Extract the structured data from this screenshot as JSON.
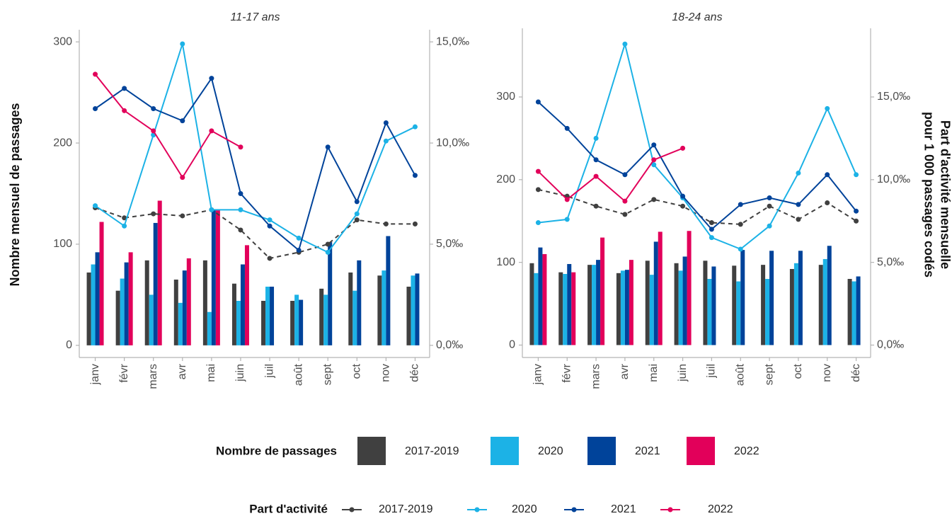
{
  "chart_data": [
    {
      "type": "combo",
      "title": "11-17 ans",
      "ylabel": "Nombre mensuel de passages",
      "categories": [
        "janv",
        "févr",
        "mars",
        "avr",
        "mai",
        "juin",
        "juil",
        "août",
        "sept",
        "oct",
        "nov",
        "déc"
      ],
      "ylim": [
        -12,
        312
      ],
      "yticks": [
        0,
        100,
        200,
        300
      ],
      "y2lim": [
        -0.6,
        15.6
      ],
      "y2ticks": [
        {
          "value": 0,
          "label": "0,0‰"
        },
        {
          "value": 5,
          "label": "5,0‰"
        },
        {
          "value": 10,
          "label": "10,0‰"
        },
        {
          "value": 15,
          "label": "15,0‰"
        }
      ],
      "series": [
        {
          "name": "2017-2019",
          "type": "bar",
          "color": "#404040",
          "values": [
            72,
            54,
            84,
            65,
            84,
            61,
            44,
            44,
            56,
            72,
            69,
            58
          ]
        },
        {
          "name": "2020",
          "type": "bar",
          "color": "#1cb2e6",
          "values": [
            80,
            66,
            50,
            42,
            33,
            44,
            58,
            50,
            50,
            54,
            74,
            69
          ]
        },
        {
          "name": "2021",
          "type": "bar",
          "color": "#00439a",
          "values": [
            92,
            82,
            121,
            74,
            134,
            80,
            58,
            45,
            102,
            84,
            108,
            71
          ]
        },
        {
          "name": "2022",
          "type": "bar",
          "color": "#e2005a",
          "values": [
            122,
            92,
            143,
            86,
            134,
            99,
            null,
            null,
            null,
            null,
            null,
            null
          ]
        },
        {
          "name": "2017-2019",
          "type": "line",
          "axis": "y2",
          "dashed": true,
          "color": "#404040",
          "values": [
            6.8,
            6.3,
            6.5,
            6.4,
            6.7,
            5.7,
            4.3,
            4.6,
            5.0,
            6.2,
            6.0,
            6.0
          ]
        },
        {
          "name": "2020",
          "type": "line",
          "axis": "y2",
          "dashed": false,
          "color": "#1cb2e6",
          "values": [
            6.9,
            5.9,
            10.4,
            14.9,
            6.7,
            6.7,
            6.2,
            5.3,
            4.6,
            6.5,
            10.1,
            10.8
          ]
        },
        {
          "name": "2021",
          "type": "line",
          "axis": "y2",
          "dashed": false,
          "color": "#00439a",
          "values": [
            11.7,
            12.7,
            11.7,
            11.1,
            13.2,
            7.5,
            5.9,
            4.7,
            9.8,
            7.1,
            11.0,
            8.4
          ]
        },
        {
          "name": "2022",
          "type": "line",
          "axis": "y2",
          "dashed": false,
          "color": "#e2005a",
          "values": [
            13.4,
            11.6,
            10.6,
            8.3,
            10.6,
            9.8,
            null,
            null,
            null,
            null,
            null,
            null
          ]
        }
      ]
    },
    {
      "type": "combo",
      "title": "18-24 ans",
      "y2label": [
        "Part d'activité mensuelle",
        "pour 1 000 passages codés"
      ],
      "categories": [
        "janv",
        "févr",
        "mars",
        "avr",
        "mai",
        "juin",
        "juil",
        "août",
        "sept",
        "oct",
        "nov",
        "déc"
      ],
      "ylim": [
        -15,
        383
      ],
      "yticks": [
        0,
        100,
        200,
        300
      ],
      "y2lim": [
        -0.75,
        19.15
      ],
      "y2ticks": [
        {
          "value": 0,
          "label": "0,0‰"
        },
        {
          "value": 5,
          "label": "5,0‰"
        },
        {
          "value": 10,
          "label": "10,0‰"
        },
        {
          "value": 15,
          "label": "15,0‰"
        }
      ],
      "series": [
        {
          "name": "2017-2019",
          "type": "bar",
          "color": "#404040",
          "values": [
            99,
            88,
            97,
            87,
            102,
            99,
            102,
            96,
            97,
            92,
            97,
            80
          ]
        },
        {
          "name": "2020",
          "type": "bar",
          "color": "#1cb2e6",
          "values": [
            87,
            86,
            97,
            90,
            85,
            90,
            80,
            77,
            80,
            99,
            104,
            77
          ]
        },
        {
          "name": "2021",
          "type": "bar",
          "color": "#00439a",
          "values": [
            118,
            98,
            103,
            91,
            125,
            107,
            95,
            115,
            114,
            114,
            120,
            83
          ]
        },
        {
          "name": "2022",
          "type": "bar",
          "color": "#e2005a",
          "values": [
            110,
            88,
            130,
            103,
            137,
            138,
            null,
            null,
            null,
            null,
            null,
            null
          ]
        },
        {
          "name": "2017-2019",
          "type": "line",
          "axis": "y2",
          "dashed": true,
          "color": "#404040",
          "values": [
            9.4,
            9.0,
            8.4,
            7.9,
            8.8,
            8.4,
            7.4,
            7.3,
            8.4,
            7.6,
            8.6,
            7.5
          ]
        },
        {
          "name": "2020",
          "type": "line",
          "axis": "y2",
          "dashed": false,
          "color": "#1cb2e6",
          "values": [
            7.4,
            7.6,
            12.5,
            18.2,
            10.9,
            8.9,
            6.5,
            5.8,
            7.2,
            10.4,
            14.3,
            10.3
          ]
        },
        {
          "name": "2021",
          "type": "line",
          "axis": "y2",
          "dashed": false,
          "color": "#00439a",
          "values": [
            14.7,
            13.1,
            11.2,
            10.3,
            12.1,
            9.0,
            7.0,
            8.5,
            8.9,
            8.5,
            10.3,
            8.1
          ]
        },
        {
          "name": "2022",
          "type": "line",
          "axis": "y2",
          "dashed": false,
          "color": "#e2005a",
          "values": [
            10.5,
            8.8,
            10.2,
            8.7,
            11.2,
            11.9,
            null,
            null,
            null,
            null,
            null,
            null
          ]
        }
      ]
    }
  ],
  "legend": {
    "bars_title": "Nombre de passages",
    "lines_title": "Part d'activité"
  }
}
